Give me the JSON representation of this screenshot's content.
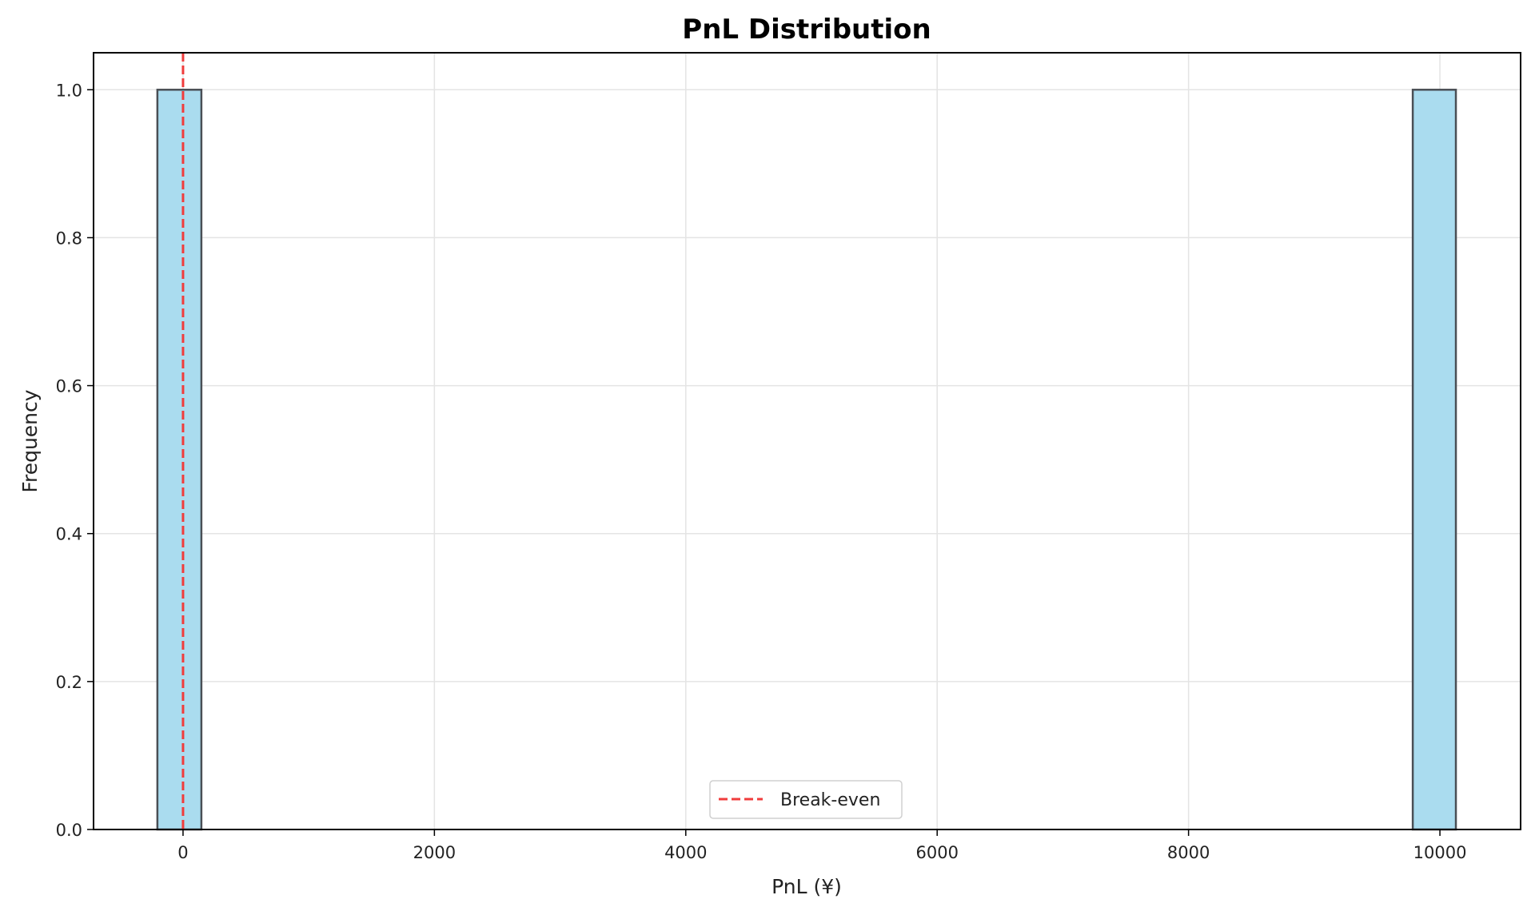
{
  "chart_data": {
    "type": "bar",
    "subtype": "histogram",
    "title": "PnL Distribution",
    "xlabel": "PnL (¥)",
    "ylabel": "Frequency",
    "xlim": [
      -712,
      10642
    ],
    "ylim": [
      0,
      1.05
    ],
    "xticks": [
      0,
      2000,
      4000,
      6000,
      8000,
      10000
    ],
    "xtick_labels": [
      "0",
      "2000",
      "4000",
      "6000",
      "8000",
      "10000"
    ],
    "yticks": [
      0.0,
      0.2,
      0.4,
      0.6,
      0.8,
      1.0
    ],
    "ytick_labels": [
      "0.0",
      "0.2",
      "0.4",
      "0.6",
      "0.8",
      "1.0"
    ],
    "grid": true,
    "bins": 30,
    "bars": [
      {
        "x_start": -204,
        "x_end": 146,
        "count": 1
      },
      {
        "x_start": 9784,
        "x_end": 10127,
        "count": 1
      }
    ],
    "reference_lines": [
      {
        "type": "vertical",
        "x": 0,
        "style": "dashed",
        "color": "#f03c3c",
        "label": "Break-even"
      }
    ],
    "legend": {
      "position": "lower center",
      "entries": [
        "Break-even"
      ]
    },
    "colors": {
      "bar_fill": "#aadcef",
      "bar_edge": "#4a4f55",
      "grid": "#e4e4e4",
      "break_even_line": "#f03c3c",
      "axes": "#000000"
    }
  }
}
